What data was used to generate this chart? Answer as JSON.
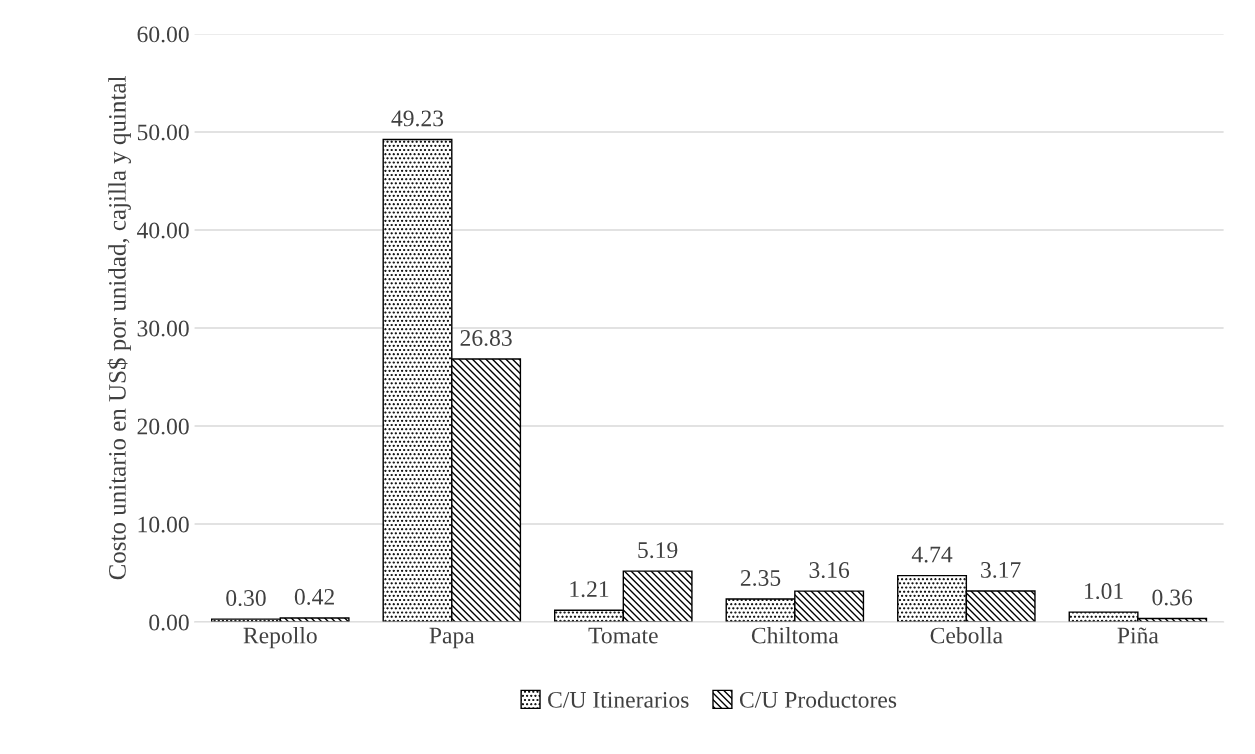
{
  "chart_data": {
    "type": "bar",
    "ylabel": "Costo unitario en US$ por unidad, cajilla y quintal",
    "categories": [
      "Repollo",
      "Papa",
      "Tomate",
      "Chiltoma",
      "Cebolla",
      "Piña"
    ],
    "series": [
      {
        "name": "C/U Itinerarios",
        "color": "#000000",
        "values": [
          0.3,
          49.23,
          1.21,
          2.35,
          4.74,
          1.01
        ],
        "value_labels": [
          "0.30",
          "49.23",
          "1.21",
          "2.35",
          "4.74",
          "1.01"
        ]
      },
      {
        "name": "C/U Productores",
        "color": "#000000",
        "values": [
          0.42,
          26.83,
          5.19,
          3.16,
          3.17,
          0.36
        ],
        "value_labels": [
          "0.42",
          "26.83",
          "5.19",
          "3.16",
          "3.17",
          "0.36"
        ]
      }
    ],
    "ylim": [
      0,
      60
    ],
    "yticks": [
      {
        "value": 0,
        "label": "0.00"
      },
      {
        "value": 10,
        "label": "10.00"
      },
      {
        "value": 20,
        "label": "20.00"
      },
      {
        "value": 30,
        "label": "30.00"
      },
      {
        "value": 40,
        "label": "40.00"
      },
      {
        "value": 50,
        "label": "50.00"
      },
      {
        "value": 60,
        "label": "60.00"
      }
    ],
    "grid": "y",
    "legend": "bottom"
  }
}
